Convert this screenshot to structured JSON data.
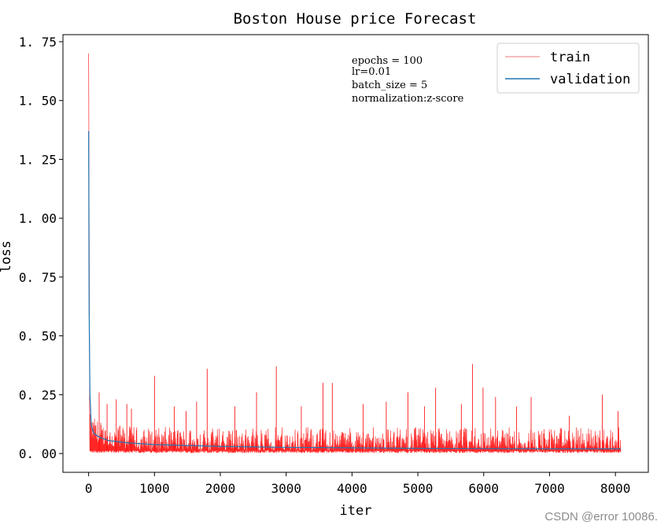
{
  "chart_data": {
    "type": "line",
    "title": "Boston House price Forecast",
    "xlabel": "iter",
    "ylabel": "loss",
    "xlim": [
      -390,
      8500
    ],
    "ylim": [
      -0.08,
      1.78
    ],
    "xticks": [
      0,
      1000,
      2000,
      3000,
      4000,
      5000,
      6000,
      7000,
      8000
    ],
    "xtick_labels": [
      "0",
      "1000",
      "2000",
      "3000",
      "4000",
      "5000",
      "6000",
      "7000",
      "8000"
    ],
    "yticks": [
      0.0,
      0.25,
      0.5,
      0.75,
      1.0,
      1.25,
      1.5,
      1.75
    ],
    "ytick_labels": [
      "0. 00",
      "0. 25",
      "0. 50",
      "0. 75",
      "1. 00",
      "1. 25",
      "1. 50",
      "1. 75"
    ],
    "grid": false,
    "legend_position": "upper-right",
    "series": [
      {
        "name": "train",
        "color": "#ff0000",
        "legend_color": "#f4a6a6",
        "x_range": [
          0,
          8080
        ],
        "start_value": 1.7,
        "baseline_min": 0.002,
        "typical_max": 0.1,
        "spikes": [
          [
            160,
            0.26
          ],
          [
            280,
            0.21
          ],
          [
            420,
            0.23
          ],
          [
            580,
            0.21
          ],
          [
            650,
            0.19
          ],
          [
            1000,
            0.33
          ],
          [
            1300,
            0.2
          ],
          [
            1480,
            0.18
          ],
          [
            1640,
            0.22
          ],
          [
            1800,
            0.36
          ],
          [
            2220,
            0.2
          ],
          [
            2550,
            0.26
          ],
          [
            2850,
            0.37
          ],
          [
            3230,
            0.2
          ],
          [
            3560,
            0.3
          ],
          [
            3700,
            0.3
          ],
          [
            4170,
            0.21
          ],
          [
            4520,
            0.22
          ],
          [
            4850,
            0.26
          ],
          [
            5100,
            0.2
          ],
          [
            5270,
            0.28
          ],
          [
            5660,
            0.21
          ],
          [
            5830,
            0.38
          ],
          [
            5990,
            0.28
          ],
          [
            6180,
            0.24
          ],
          [
            6500,
            0.2
          ],
          [
            6720,
            0.24
          ],
          [
            7300,
            0.16
          ],
          [
            7800,
            0.25
          ],
          [
            8040,
            0.18
          ]
        ]
      },
      {
        "name": "validation",
        "color": "#1f77b4",
        "x_range": [
          0,
          8080
        ],
        "points": [
          [
            0,
            1.37
          ],
          [
            8,
            0.6
          ],
          [
            20,
            0.25
          ],
          [
            40,
            0.12
          ],
          [
            80,
            0.085
          ],
          [
            160,
            0.07
          ],
          [
            300,
            0.055
          ],
          [
            600,
            0.045
          ],
          [
            1000,
            0.038
          ],
          [
            2000,
            0.03
          ],
          [
            3000,
            0.026
          ],
          [
            4000,
            0.024
          ],
          [
            5000,
            0.022
          ],
          [
            6000,
            0.021
          ],
          [
            7000,
            0.02
          ],
          [
            8080,
            0.02
          ]
        ]
      }
    ],
    "annotations": [
      "epochs = 100",
      "lr=0.01",
      "batch_size = 5",
      "normalization:z-score"
    ]
  },
  "watermark": "CSDN @error 10086."
}
